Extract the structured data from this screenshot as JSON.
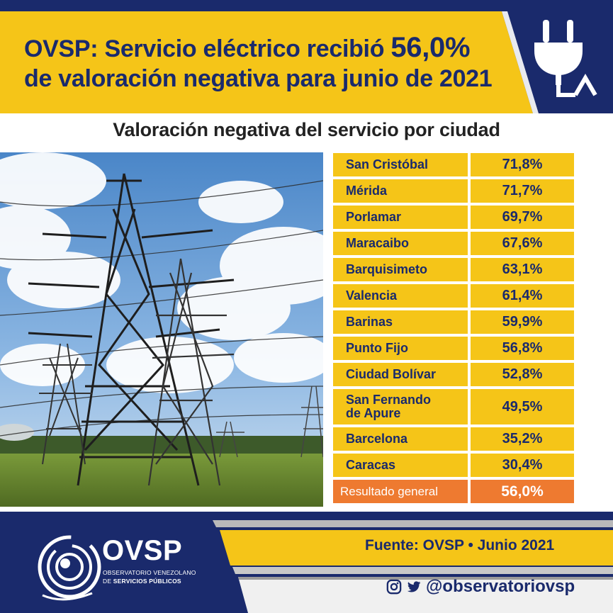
{
  "header": {
    "headline_line1": "OVSP: Servicio eléctrico recibió",
    "headline_highlight": "56,0%",
    "headline_line2": "de valoración negativa para junio de 2021",
    "icon": "plug-icon"
  },
  "chart_data": {
    "type": "table",
    "title": "Valoración negativa del servicio por ciudad",
    "unit": "%",
    "categories": [
      "San Cristóbal",
      "Mérida",
      "Porlamar",
      "Maracaibo",
      "Barquisimeto",
      "Valencia",
      "Barinas",
      "Punto Fijo",
      "Ciudad Bolívar",
      "San Fernando de Apure",
      "Barcelona",
      "Caracas"
    ],
    "values": [
      71.8,
      71.7,
      69.7,
      67.6,
      63.1,
      61.4,
      59.9,
      56.8,
      52.8,
      49.5,
      35.2,
      30.4
    ],
    "rows": [
      {
        "city": "San Cristóbal",
        "value": "71,8%"
      },
      {
        "city": "Mérida",
        "value": "71,7%"
      },
      {
        "city": "Porlamar",
        "value": "69,7%"
      },
      {
        "city": "Maracaibo",
        "value": "67,6%"
      },
      {
        "city": "Barquisimeto",
        "value": "63,1%"
      },
      {
        "city": "Valencia",
        "value": "61,4%"
      },
      {
        "city": "Barinas",
        "value": "59,9%"
      },
      {
        "city": "Punto Fijo",
        "value": "56,8%"
      },
      {
        "city": "Ciudad Bolívar",
        "value": "52,8%"
      },
      {
        "city_line1": "San Fernando",
        "city_line2": "de Apure",
        "value": "49,5%"
      },
      {
        "city": "Barcelona",
        "value": "35,2%"
      },
      {
        "city": "Caracas",
        "value": "30,4%"
      }
    ],
    "general": {
      "label": "Resultado general",
      "value": "56,0%"
    }
  },
  "footer": {
    "logo_text": "OVSP",
    "logo_sub1": "OBSERVATORIO VENEZOLANO",
    "logo_sub2_prefix": "DE",
    "logo_sub2": "SERVICIOS PÚBLICOS",
    "source": "Fuente: OVSP  •  Junio 2021",
    "social_handle": "@observatoriovsp",
    "social_icons": [
      "instagram-icon",
      "twitter-icon"
    ]
  },
  "colors": {
    "navy": "#1a2a6c",
    "yellow": "#f5c518",
    "orange": "#ee7a30"
  }
}
